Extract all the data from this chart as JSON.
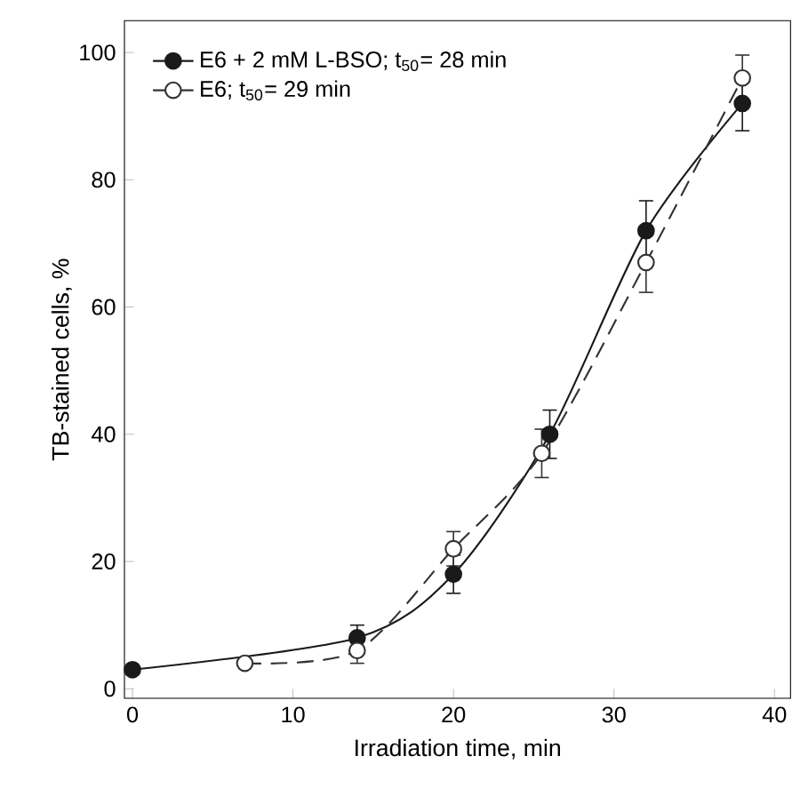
{
  "chart_data": {
    "type": "line",
    "xlabel": "Irradiation time, min",
    "ylabel": "TB-stained cells, %",
    "xlim": [
      -0.5,
      41
    ],
    "ylim": [
      -1.5,
      105
    ],
    "xticks": [
      0,
      10,
      20,
      30,
      40
    ],
    "yticks": [
      0,
      20,
      40,
      60,
      80,
      100
    ],
    "legend": "top left",
    "grid": false,
    "series": [
      {
        "name": "E6 + 2 mM L-BSO; t$_{50}$= 28 min",
        "color": "#1a1a1a",
        "marker": "circle",
        "line_style": "solid",
        "x": [
          0,
          14,
          20,
          26,
          32,
          38
        ],
        "values": [
          3,
          8,
          18,
          40,
          72,
          92
        ],
        "errors": [
          null,
          2,
          3,
          3.8,
          4.7,
          4.3
        ]
      },
      {
        "name": "E6; t$_{50}$= 29 min",
        "color": "#333333",
        "marker": "circle",
        "line_style": "dashed",
        "x": [
          7,
          14,
          20,
          25.5,
          32,
          38
        ],
        "values": [
          4,
          6,
          22,
          37,
          67,
          96
        ],
        "errors": [
          null,
          2,
          2.7,
          3.8,
          4.7,
          3.6
        ]
      }
    ]
  }
}
